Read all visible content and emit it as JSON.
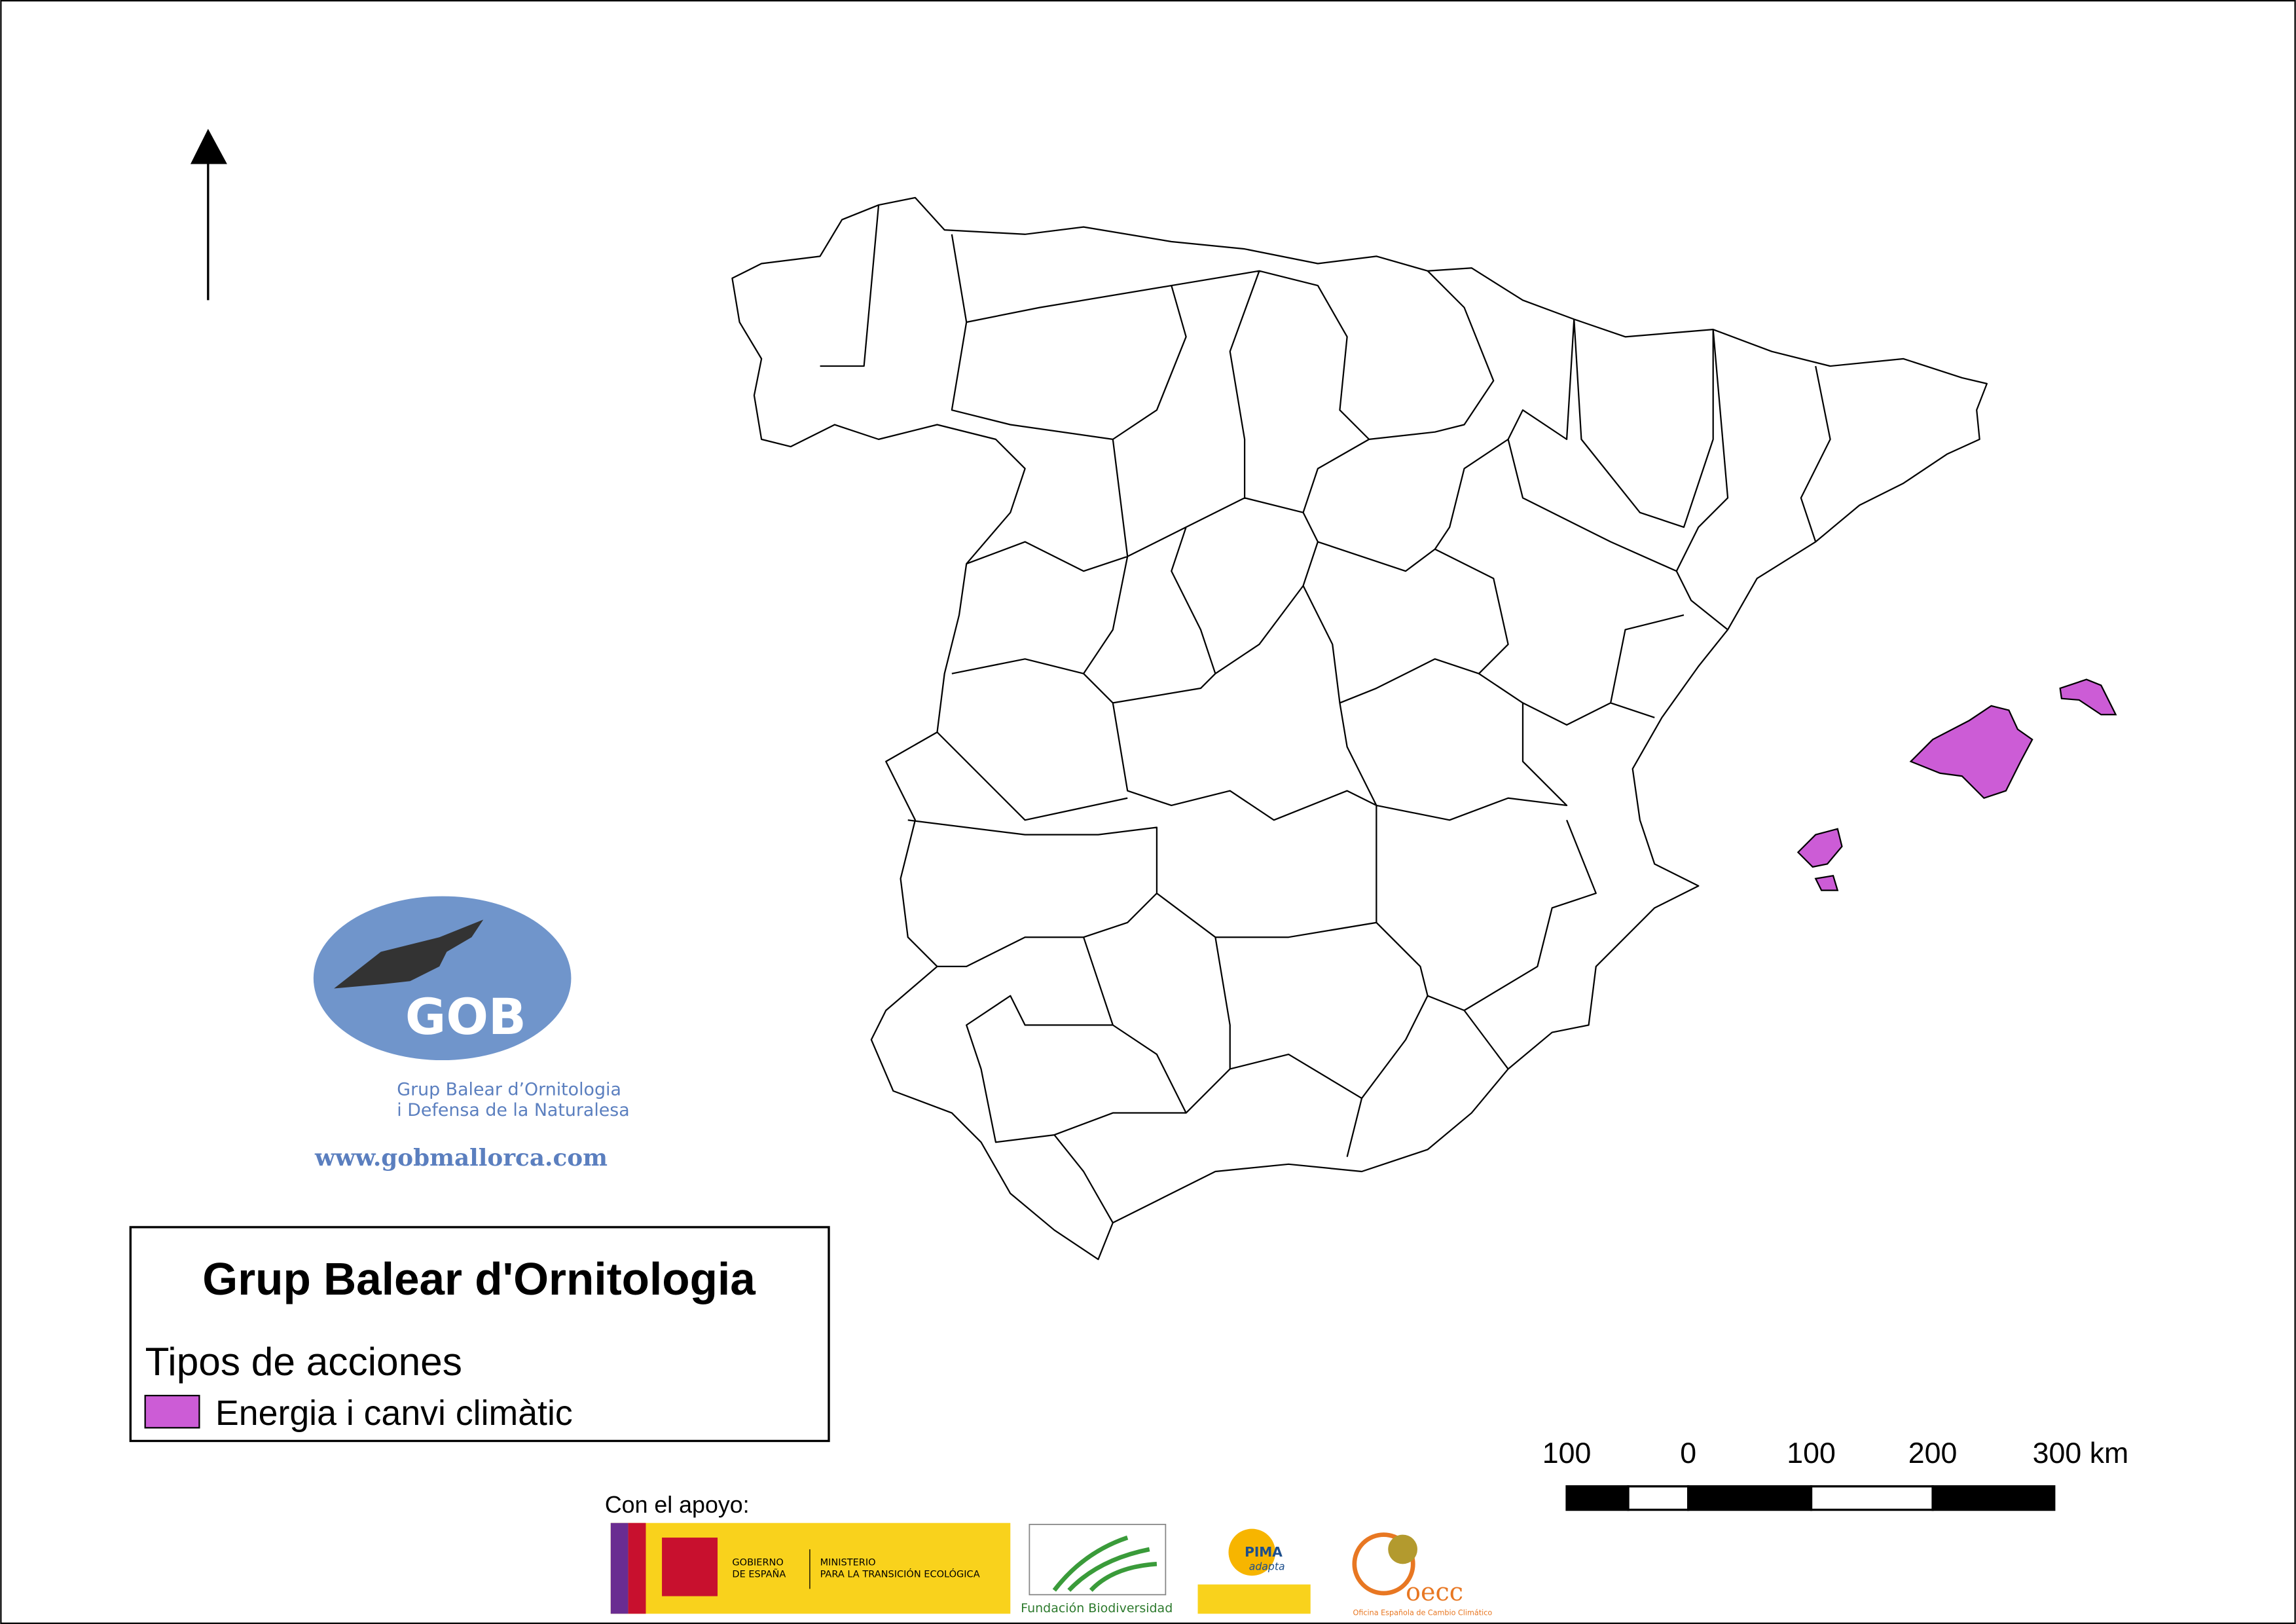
{
  "logo": {
    "acronym": "GOB",
    "name_lines": [
      "Grup Balear d’Ornitologia",
      "i Defensa de la Naturalesa"
    ],
    "url": "www.gobmallorca.com"
  },
  "legend": {
    "title": "Grup Balear d'Ornitologia",
    "subtitle": "Tipos de acciones",
    "items": [
      {
        "label": "Energia i canvi climàtic",
        "color": "#cc5cd6"
      }
    ]
  },
  "scale_bar": {
    "labels": [
      "100",
      "0",
      "100",
      "200",
      "300 km"
    ]
  },
  "sponsors": {
    "heading": "Con el apoyo:",
    "government": {
      "lines": [
        "GOBIERNO",
        "DE ESPAÑA"
      ],
      "ministry_lines": [
        "MINISTERIO",
        "PARA LA TRANSICIÓN ECOLÓGICA"
      ]
    },
    "fundacion": "Fundación Biodiversidad",
    "pima": [
      "PIMA",
      "adapta"
    ],
    "oecc": {
      "acronym": "oecc",
      "name": "Oficina Española de Cambio Climático"
    }
  }
}
